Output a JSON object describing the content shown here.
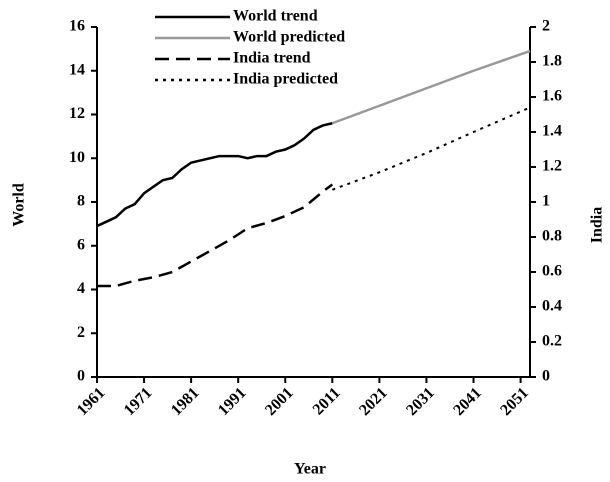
{
  "chart_data": {
    "type": "line",
    "xlabel": "Year",
    "ylabel": "World",
    "y2label": "India",
    "xlim": [
      1961,
      2053
    ],
    "xticks": [
      1961,
      1971,
      1981,
      1991,
      2001,
      2011,
      2021,
      2031,
      2041,
      2051
    ],
    "ylim": [
      0,
      16
    ],
    "yticks": [
      0,
      2,
      4,
      6,
      8,
      10,
      12,
      14,
      16
    ],
    "y2lim": [
      0,
      2
    ],
    "y2ticks": [
      0,
      0.2,
      0.4,
      0.6,
      0.8,
      1,
      1.2,
      1.4,
      1.6,
      1.8,
      2
    ],
    "series": [
      {
        "name": "World trend",
        "color": "#000000",
        "dash": "solid",
        "x": [
          1961,
          1963,
          1965,
          1967,
          1969,
          1971,
          1973,
          1975,
          1977,
          1979,
          1981,
          1983,
          1985,
          1987,
          1989,
          1991,
          1993,
          1995,
          1997,
          1999,
          2001,
          2003,
          2005,
          2007,
          2009,
          2011
        ],
        "values": [
          6.9,
          7.1,
          7.3,
          7.7,
          7.9,
          8.4,
          8.7,
          9.0,
          9.1,
          9.5,
          9.8,
          9.9,
          10.0,
          10.1,
          10.1,
          10.1,
          10.0,
          10.1,
          10.1,
          10.3,
          10.4,
          10.6,
          10.9,
          11.3,
          11.5,
          11.6
        ]
      },
      {
        "name": "World predicted",
        "color": "#999999",
        "dash": "solid",
        "x": [
          2011,
          2021,
          2031,
          2041,
          2053
        ],
        "values": [
          11.6,
          12.4,
          13.2,
          14.0,
          14.9
        ]
      },
      {
        "name": "India trend",
        "color": "#000000",
        "dash": "dashed",
        "axis": "y2",
        "x": [
          1961,
          1965,
          1969,
          1973,
          1977,
          1981,
          1985,
          1989,
          1993,
          1997,
          2001,
          2005,
          2009,
          2011
        ],
        "values": [
          0.52,
          0.52,
          0.55,
          0.57,
          0.6,
          0.66,
          0.72,
          0.78,
          0.85,
          0.88,
          0.92,
          0.97,
          1.06,
          1.1
        ]
      },
      {
        "name": "India predicted",
        "color": "#000000",
        "dash": "dotted",
        "axis": "y2",
        "x": [
          2011,
          2021,
          2031,
          2041,
          2053
        ],
        "values": [
          1.07,
          1.17,
          1.28,
          1.4,
          1.54
        ]
      }
    ]
  }
}
